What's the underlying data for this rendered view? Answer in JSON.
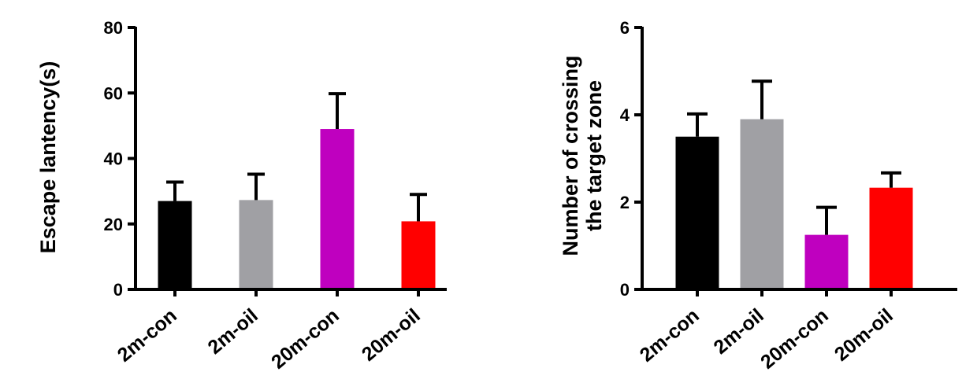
{
  "colors": {
    "2m-con": "#000000",
    "2m-oil": "#a0a0a4",
    "20m-con": "#bf00bf",
    "20m-oil": "#ff0000"
  },
  "chart_data": [
    {
      "type": "bar",
      "categories": [
        "2m-con",
        "2m-oil",
        "20m-con",
        "20m-oil"
      ],
      "values": [
        27,
        27.3,
        49,
        20.8
      ],
      "error_plus": [
        5.8,
        7.9,
        10.8,
        8.2
      ],
      "ylabel": "Escape lantency(s)",
      "ylim": [
        0,
        80
      ],
      "yticks": [
        0,
        20,
        40,
        60,
        80
      ],
      "ytick_labels": [
        "0",
        "20",
        "40",
        "60",
        "80"
      ],
      "grid": false,
      "legend": "none"
    },
    {
      "type": "bar",
      "categories": [
        "2m-con",
        "2m-oil",
        "20m-con",
        "20m-oil"
      ],
      "values": [
        3.5,
        3.9,
        1.25,
        2.33
      ],
      "error_plus": [
        0.52,
        0.87,
        0.63,
        0.34
      ],
      "ylabel": [
        "Number of crossing",
        "the target zone"
      ],
      "ylim": [
        0,
        6
      ],
      "yticks": [
        0,
        2,
        4,
        6
      ],
      "ytick_labels": [
        "0",
        "2",
        "4",
        "6"
      ],
      "grid": false,
      "legend": "none"
    }
  ]
}
